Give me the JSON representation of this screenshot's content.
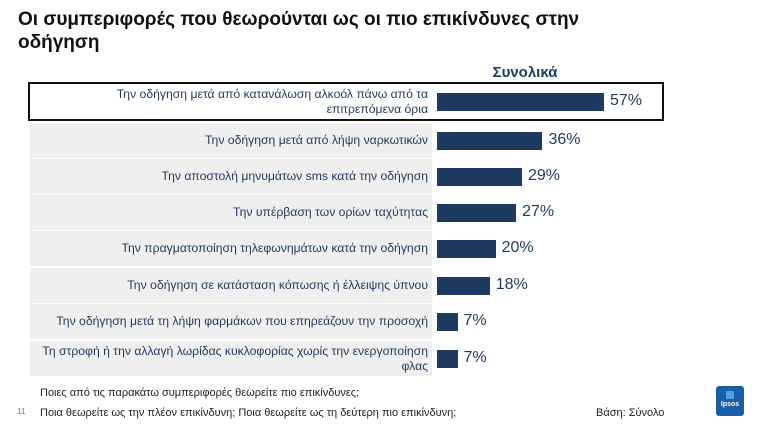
{
  "slide": {
    "title": "Οι συμπεριφορές που θεωρούνται ως οι πιο επικίνδυνες στην οδήγηση",
    "column_header": "Συνολικά",
    "question_line1": "Ποιες από τις παρακάτω συμπεριφορές θεωρείτε πιο επικίνδυνες;",
    "question_line2": "Ποια θεωρείτε ως την πλέον επικίνδυνη;  Ποια θεωρείτε ως τη δεύτερη πιο επικίνδυνη;",
    "base": "Βάση: Σύνολο",
    "page_number": "11",
    "logo_text": "Ipsos"
  },
  "chart_data": {
    "type": "bar",
    "orientation": "horizontal",
    "categories": [
      "Την οδήγηση μετά από κατανάλωση αλκοόλ πάνω από τα επιτρεπόμενα όρια",
      "Την οδήγηση μετά από λήψη ναρκωτικών",
      "Την αποστολή μηνυμάτων sms κατά την οδήγηση",
      "Την υπέρβαση των ορίων ταχύτητας",
      "Την πραγματοποίηση τηλεφωνημάτων κατά την οδήγηση",
      "Την οδήγηση σε κατάσταση κόπωσης ή έλλειψης ύπνου",
      "Την οδήγηση μετά τη λήψη φαρμάκων που επηρεάζουν την προσοχή",
      "Τη στροφή ή την αλλαγή λωρίδας κυκλοφορίας χωρίς την ενεργοποίηση φλας"
    ],
    "values": [
      57,
      36,
      29,
      27,
      20,
      18,
      7,
      7
    ],
    "value_labels": [
      "57%",
      "36%",
      "29%",
      "27%",
      "20%",
      "18%",
      "7%",
      "7%"
    ],
    "highlighted_index": 0,
    "bar_color": "#1f3a60",
    "xlim": [
      0,
      100
    ]
  }
}
